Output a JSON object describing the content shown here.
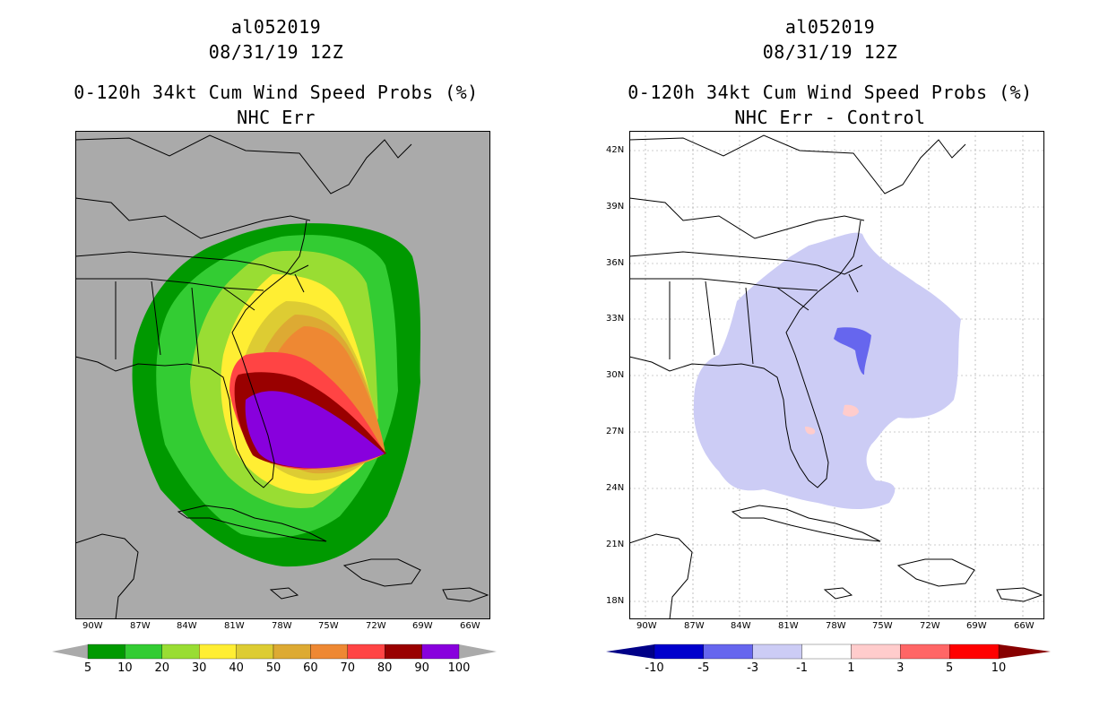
{
  "left": {
    "storm_id": "al052019",
    "datetime": "08/31/19 12Z",
    "product": "0-120h 34kt Cum Wind Speed Probs (%)",
    "subtitle": "NHC Err",
    "colorbar": {
      "labels": [
        "5",
        "10",
        "20",
        "30",
        "40",
        "50",
        "60",
        "70",
        "80",
        "90",
        "100"
      ],
      "colors": [
        "#009900",
        "#33cc33",
        "#99dd33",
        "#ffee33",
        "#ddcc33",
        "#ddaa33",
        "#ee8833",
        "#ff4444",
        "#990000",
        "#8800dd"
      ]
    }
  },
  "right": {
    "storm_id": "al052019",
    "datetime": "08/31/19 12Z",
    "product": "0-120h 34kt Cum Wind Speed Probs (%)",
    "subtitle": "NHC Err - Control",
    "colorbar": {
      "labels": [
        "-10",
        "-5",
        "-3",
        "-1",
        "1",
        "3",
        "5",
        "10"
      ],
      "colors": [
        "#0000cc",
        "#6666ee",
        "#ccccf5",
        "#ffffff",
        "#ffcccc",
        "#ff6666",
        "#ff0000"
      ],
      "end_colors": [
        "#000088",
        "#880000"
      ]
    }
  },
  "axes": {
    "lat_labels": [
      "42N",
      "39N",
      "36N",
      "33N",
      "30N",
      "27N",
      "24N",
      "21N",
      "18N"
    ],
    "lon_labels": [
      "90W",
      "87W",
      "84W",
      "81W",
      "78W",
      "75W",
      "72W",
      "69W",
      "66W"
    ]
  },
  "colors": {
    "land_ocean_bg": "#aaaaaa",
    "map_line": "#000000"
  }
}
